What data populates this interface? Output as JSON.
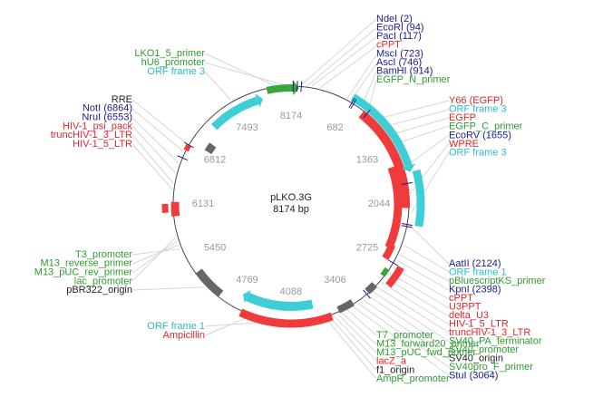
{
  "center": {
    "name": "pLKO.3G",
    "size": "8174 bp"
  },
  "ticks": [
    8174,
    682,
    1363,
    2044,
    2725,
    3406,
    4088,
    4769,
    5450,
    6131,
    6812,
    7493
  ],
  "label_groups": [
    {
      "labels": [
        {
          "text": "NdeI (2)",
          "color": "#1a1a8c"
        },
        {
          "text": "EcoRI (94)",
          "color": "#1a1a8c"
        },
        {
          "text": "PacI (117)",
          "color": "#1a1a8c"
        },
        {
          "text": "cPPT",
          "color": "#e0262b"
        },
        {
          "text": "MscI (723)",
          "color": "#1a1a8c"
        },
        {
          "text": "AscI (746)",
          "color": "#1a1a8c"
        },
        {
          "text": "BamHI (914)",
          "color": "#1a1a8c"
        },
        {
          "text": "EGFP_N_primer",
          "color": "#2f9a2f"
        }
      ]
    },
    {
      "labels": [
        {
          "text": "Y66 (EGFP)",
          "color": "#e0262b"
        },
        {
          "text": "ORF frame 3",
          "color": "#2bbbcc"
        },
        {
          "text": "EGFP",
          "color": "#e0262b"
        },
        {
          "text": "EGFP_C_primer",
          "color": "#2f9a2f"
        },
        {
          "text": "EcoRV (1655)",
          "color": "#1a1a8c"
        },
        {
          "text": "WPRE",
          "color": "#e0262b"
        },
        {
          "text": "ORF frame 3",
          "color": "#2bbbcc"
        }
      ]
    },
    {
      "labels": [
        {
          "text": "AatII (2124)",
          "color": "#1a1a8c"
        },
        {
          "text": "ORF frame 1",
          "color": "#2bbbcc"
        },
        {
          "text": "pBluescriptKS_primer",
          "color": "#2f9a2f"
        },
        {
          "text": "KpnI (2398)",
          "color": "#1a1a8c"
        },
        {
          "text": "cPPT",
          "color": "#e0262b"
        },
        {
          "text": "U3PPT",
          "color": "#e0262b"
        },
        {
          "text": "delta_U3",
          "color": "#e0262b"
        },
        {
          "text": "HIV-1_5_LTR",
          "color": "#e0262b"
        },
        {
          "text": "truncHIV-1_3_LTR",
          "color": "#e0262b"
        },
        {
          "text": "SV40_PA_terminator",
          "color": "#2f9a2f"
        },
        {
          "text": "SV40_promoter",
          "color": "#2f9a2f"
        },
        {
          "text": "SV40_origin",
          "color": "#222222"
        },
        {
          "text": "SV40pro_F_primer",
          "color": "#2f9a2f"
        },
        {
          "text": "StuI (3064)",
          "color": "#1a1a8c"
        }
      ]
    },
    {
      "labels": [
        {
          "text": "T7_promoter",
          "color": "#2f9a2f"
        },
        {
          "text": "M13_forward20_primer",
          "color": "#2f9a2f"
        },
        {
          "text": "M13_pUC_fwd_primer",
          "color": "#2f9a2f"
        },
        {
          "text": "lacZ_a",
          "color": "#e0262b"
        },
        {
          "text": "f1_origin",
          "color": "#222222"
        },
        {
          "text": "AmpR_promoter",
          "color": "#2f9a2f"
        }
      ]
    },
    {
      "labels": [
        {
          "text": "T3_promoter",
          "color": "#2f9a2f"
        },
        {
          "text": "M13_reverse_primer",
          "color": "#2f9a2f"
        },
        {
          "text": "M13_pUC_rev_primer",
          "color": "#2f9a2f"
        },
        {
          "text": "lac_promoter",
          "color": "#2f9a2f"
        },
        {
          "text": "pBR322_origin",
          "color": "#222222"
        }
      ]
    },
    {
      "labels": [
        {
          "text": "RRE",
          "color": "#222222"
        },
        {
          "text": "NotI (6864)",
          "color": "#1a1a8c"
        },
        {
          "text": "NruI (6553)",
          "color": "#1a1a8c"
        },
        {
          "text": "HIV-1_psi_pack",
          "color": "#e0262b"
        },
        {
          "text": "truncHIV-1_3_LTR",
          "color": "#e0262b"
        },
        {
          "text": "HIV-1_5_LTR",
          "color": "#e0262b"
        }
      ]
    },
    {
      "labels": [
        {
          "text": "LKO1_5_primer",
          "color": "#2f9a2f"
        },
        {
          "text": "hU6_promoter",
          "color": "#2f9a2f"
        },
        {
          "text": "ORF frame 3",
          "color": "#2bbbcc"
        }
      ]
    },
    {
      "labels": [
        {
          "text": "ORF frame 1",
          "color": "#2bbbcc"
        },
        {
          "text": "Ampicillin",
          "color": "#e0262b"
        }
      ]
    }
  ]
}
